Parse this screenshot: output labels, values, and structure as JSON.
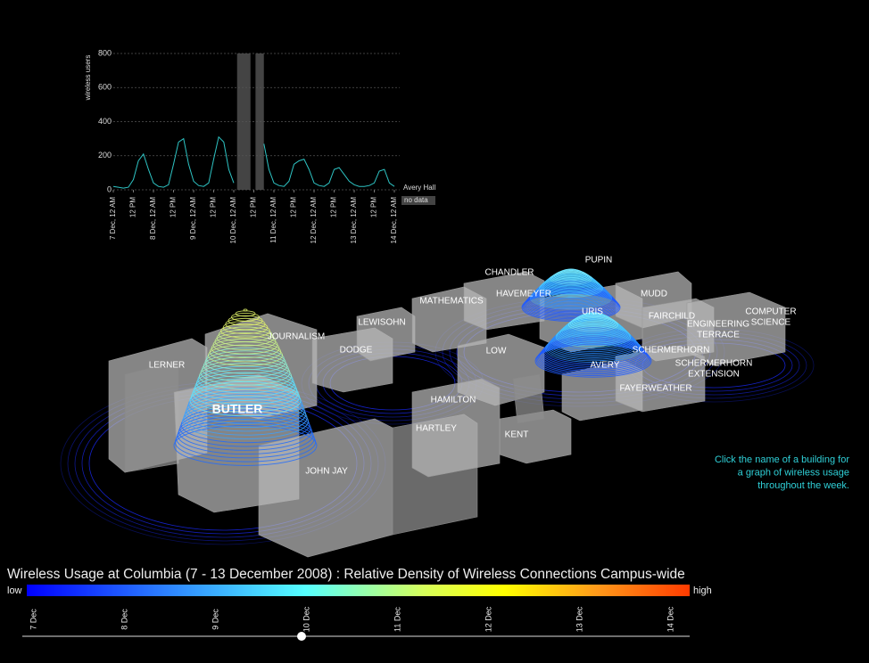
{
  "chart_data": {
    "type": "line",
    "y_label": "wireless users",
    "x": [
      0,
      3,
      6,
      9,
      12,
      15,
      18,
      21,
      24,
      27,
      30,
      33,
      36,
      39,
      42,
      45,
      48,
      51,
      54,
      57,
      60,
      63,
      66,
      69,
      72,
      75,
      78,
      81,
      84,
      87,
      90,
      93,
      96,
      99,
      102,
      105,
      108,
      111,
      114,
      117,
      120,
      123,
      126,
      129,
      132,
      135,
      138,
      141,
      144,
      147,
      150,
      153,
      156,
      159,
      162,
      165,
      168
    ],
    "series": [
      {
        "name": "Avery Hall",
        "color": "#2ec4c4",
        "values": [
          20,
          15,
          10,
          15,
          60,
          170,
          210,
          120,
          40,
          20,
          15,
          30,
          150,
          280,
          300,
          150,
          50,
          25,
          20,
          40,
          180,
          310,
          280,
          120,
          40,
          null,
          null,
          null,
          130,
          null,
          270,
          120,
          40,
          25,
          20,
          50,
          150,
          170,
          180,
          120,
          40,
          25,
          20,
          40,
          120,
          130,
          90,
          50,
          30,
          20,
          20,
          25,
          40,
          110,
          120,
          40,
          20
        ]
      }
    ],
    "no_data": {
      "label": "no data",
      "ranges": [
        [
          74,
          82
        ],
        [
          85,
          90
        ]
      ]
    },
    "xlim": [
      0,
      168
    ],
    "xticks": [
      {
        "value": 0,
        "label": "7 Dec, 12 AM"
      },
      {
        "value": 12,
        "label": "12 PM"
      },
      {
        "value": 24,
        "label": "8 Dec, 12 AM"
      },
      {
        "value": 36,
        "label": "12 PM"
      },
      {
        "value": 48,
        "label": "9 Dec, 12 AM"
      },
      {
        "value": 60,
        "label": "12 PM"
      },
      {
        "value": 72,
        "label": "10 Dec, 12 AM"
      },
      {
        "value": 84,
        "label": "12 PM"
      },
      {
        "value": 96,
        "label": "11 Dec, 12 AM"
      },
      {
        "value": 108,
        "label": "12 PM"
      },
      {
        "value": 120,
        "label": "12 Dec, 12 AM"
      },
      {
        "value": 132,
        "label": "12 PM"
      },
      {
        "value": 144,
        "label": "13 Dec, 12 AM"
      },
      {
        "value": 156,
        "label": "12 PM"
      },
      {
        "value": 168,
        "label": "14 Dec, 12 AM"
      }
    ],
    "ylim": [
      0,
      800
    ],
    "yticks": [
      0,
      200,
      400,
      600,
      800
    ],
    "grid": true
  },
  "map": {
    "buildings": [
      "LERNER",
      "BUTLER",
      "JOURNALISM",
      "DODGE",
      "LEWISOHN",
      "MATHEMATICS",
      "CHANDLER",
      "HAVEMEYER",
      "PUPIN",
      "MUDD",
      "URIS",
      "FAIRCHILD",
      [
        "COMPUTER",
        "SCIENCE"
      ],
      [
        "ENGINEERING",
        "TERRACE"
      ],
      "LOW",
      "SCHERMERHORN",
      "AVERY",
      [
        "SCHERMERHORN",
        "EXTENSION"
      ],
      "HAMILTON",
      "FAYERWEATHER",
      "HARTLEY",
      "KENT",
      "JOHN JAY"
    ],
    "hint": [
      "Click the name of a building for",
      "a graph of wireless usage",
      "throughout the week."
    ]
  },
  "legend": {
    "title": "Wireless Usage at Columbia (7 - 13 December 2008) : Relative Density of Wireless Connections Campus-wide",
    "low": "low",
    "high": "high"
  },
  "timeline": {
    "labels": [
      "7 Dec",
      "8 Dec",
      "9 Dec",
      "10 Dec",
      "11 Dec",
      "12 Dec",
      "13 Dec",
      "14 Dec"
    ]
  }
}
